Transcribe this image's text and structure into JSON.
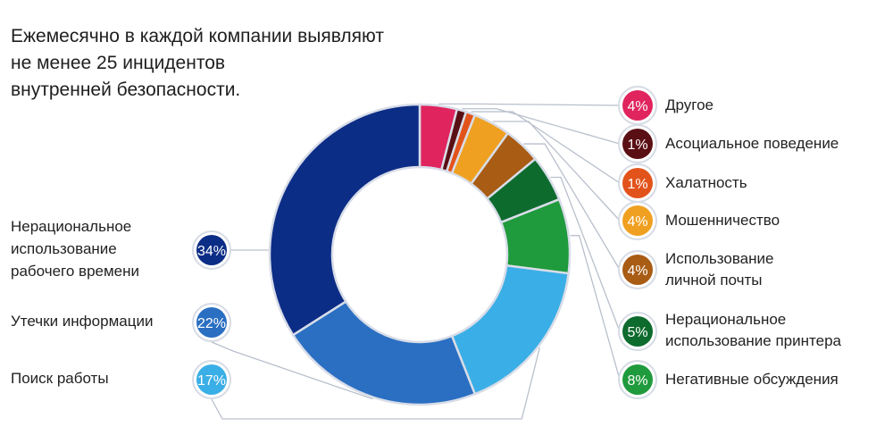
{
  "title_lines": [
    "Ежемесячно в каждой компании выявляют",
    "не менее 25 инцидентов",
    "внутренней безопасности."
  ],
  "chart_data": {
    "type": "pie",
    "donut": true,
    "slices": [
      {
        "label_lines": [
          "Другое"
        ],
        "value": 4,
        "badge": "4%",
        "color": "#e0245e",
        "side": "right"
      },
      {
        "label_lines": [
          "Асоциальное поведение"
        ],
        "value": 1,
        "badge": "1%",
        "color": "#5a0f14",
        "side": "right"
      },
      {
        "label_lines": [
          "Халатность"
        ],
        "value": 1,
        "badge": "1%",
        "color": "#e2531b",
        "side": "right"
      },
      {
        "label_lines": [
          "Мошенничество"
        ],
        "value": 4,
        "badge": "4%",
        "color": "#f0a020",
        "side": "right"
      },
      {
        "label_lines": [
          "Использование",
          "личной почты"
        ],
        "value": 4,
        "badge": "4%",
        "color": "#a85c14",
        "side": "right"
      },
      {
        "label_lines": [
          "Нерациональное",
          "использование принтера"
        ],
        "value": 5,
        "badge": "5%",
        "color": "#0e6b2e",
        "side": "right"
      },
      {
        "label_lines": [
          "Негативные обсуждения"
        ],
        "value": 8,
        "badge": "8%",
        "color": "#1f9a3c",
        "side": "right"
      },
      {
        "label_lines": [
          "Поиск работы"
        ],
        "value": 17,
        "badge": "17%",
        "color": "#3aaee6",
        "side": "left"
      },
      {
        "label_lines": [
          "Утечки информации"
        ],
        "value": 22,
        "badge": "22%",
        "color": "#2a6fc2",
        "side": "left"
      },
      {
        "label_lines": [
          "Нерациональное",
          "использование",
          "рабочего времени"
        ],
        "value": 34,
        "badge": "34%",
        "color": "#0c2d86",
        "side": "left"
      }
    ]
  }
}
